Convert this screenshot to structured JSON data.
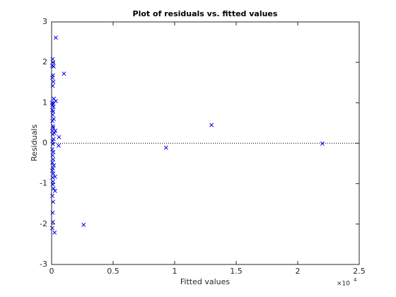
{
  "chart_data": {
    "type": "scatter",
    "title": "Plot of residuals vs. fitted values",
    "xlabel": "Fitted values",
    "ylabel": "Residuals",
    "x_multiplier": {
      "base": "×10",
      "exponent": "4"
    },
    "xlim": [
      0,
      2.5
    ],
    "xticks": [
      0,
      0.5,
      1,
      1.5,
      2,
      2.5
    ],
    "ylim": [
      -3,
      3
    ],
    "yticks": [
      -3,
      -2,
      -1,
      0,
      1,
      2,
      3
    ],
    "reference_line": 0,
    "color": "#0000ff",
    "x": [
      0.034,
      0.1,
      1.3,
      0.93,
      2.2,
      0.26,
      0.06,
      0.057,
      0.034,
      0.03,
      0.028,
      0.024,
      0.028,
      0.022,
      0.008,
      0.012,
      0.005,
      0.016,
      0.01,
      0.006,
      0.014,
      0.009,
      0.018,
      0.004,
      0.011,
      0.007,
      0.015,
      0.005,
      0.012,
      0.008,
      0.017,
      0.006,
      0.01,
      0.013,
      0.004,
      0.009,
      0.016,
      0.007,
      0.011,
      0.005,
      0.014,
      0.008,
      0.012,
      0.006,
      0.018,
      0.01,
      0.005,
      0.013,
      0.007,
      0.011,
      0.009,
      0.015,
      0.006,
      0.012,
      0.008,
      0.01,
      0.005
    ],
    "y": [
      2.61,
      1.72,
      0.45,
      -0.11,
      -0.01,
      -2.02,
      0.15,
      -0.06,
      1.04,
      0.31,
      -1.18,
      -2.21,
      -0.83,
      0.25,
      2.08,
      2.0,
      1.92,
      1.9,
      1.68,
      1.62,
      1.52,
      1.42,
      1.1,
      1.0,
      0.98,
      0.95,
      0.9,
      0.82,
      0.78,
      0.7,
      0.6,
      0.55,
      0.42,
      0.38,
      0.3,
      0.22,
      0.1,
      0.05,
      -0.02,
      -0.15,
      -0.22,
      -0.3,
      -0.4,
      -0.48,
      -0.55,
      -0.62,
      -0.68,
      -0.75,
      -0.85,
      -0.95,
      -1.02,
      -1.12,
      -1.3,
      -1.45,
      -1.72,
      -1.95,
      -2.1
    ]
  }
}
